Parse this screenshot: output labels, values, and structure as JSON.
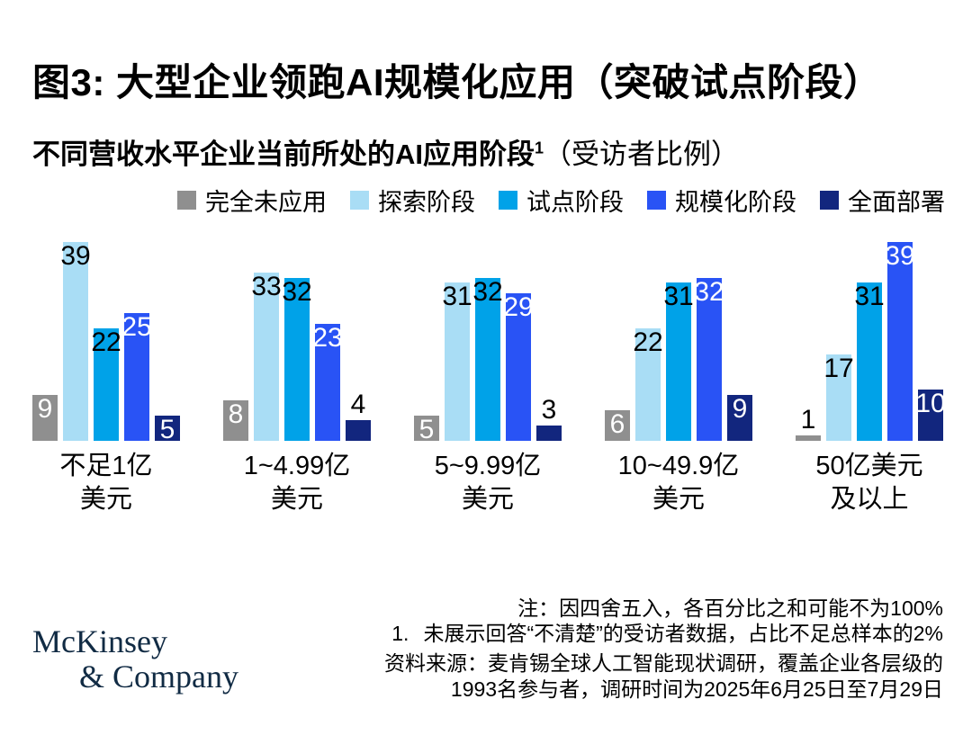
{
  "title": "图3: 大型企业领跑AI规模化应用（突破试点阶段）",
  "subtitle": {
    "bold": "不同营收水平企业当前所处的AI应用阶段",
    "superscript": "1",
    "normal": "（受访者比例）"
  },
  "chart_data": {
    "type": "bar",
    "categories": [
      [
        "不足1亿",
        "美元"
      ],
      [
        "1~4.99亿",
        "美元"
      ],
      [
        "5~9.99亿",
        "美元"
      ],
      [
        "10~49.9亿",
        "美元"
      ],
      [
        "50亿美元",
        "及以上"
      ]
    ],
    "series": [
      {
        "name": "完全未应用",
        "color": "#8F8F8F",
        "values": [
          9,
          8,
          5,
          6,
          1
        ]
      },
      {
        "name": "探索阶段",
        "color": "#A9DDF5",
        "values": [
          39,
          33,
          31,
          22,
          17
        ]
      },
      {
        "name": "试点阶段",
        "color": "#00A2E8",
        "values": [
          22,
          32,
          32,
          31,
          31
        ]
      },
      {
        "name": "规模化阶段",
        "color": "#2953F5",
        "values": [
          25,
          23,
          29,
          32,
          39
        ]
      },
      {
        "name": "全面部署",
        "color": "#12267E",
        "values": [
          5,
          4,
          3,
          9,
          10
        ]
      }
    ],
    "ylim": [
      0,
      40
    ],
    "unit": "%",
    "legend_position": "top",
    "grid": false
  },
  "footnotes": {
    "note": "注：因四舍五入，各百分比之和可能不为100%",
    "fn1_num": "1.",
    "fn1_text": "未展示回答“不清楚”的受访者数据，占比不足总样本的2%",
    "source_line1": "资料来源：麦肯锡全球人工智能现状调研，覆盖企业各层级的",
    "source_line2": "1993名参与者，调研时间为2025年6月25日至7月29日"
  },
  "logo": {
    "line1": "McKinsey",
    "line2": "& Company"
  },
  "colors": {
    "logo_navy": "#112B44",
    "label_white": "#FFFFFF",
    "label_black": "#000000"
  }
}
